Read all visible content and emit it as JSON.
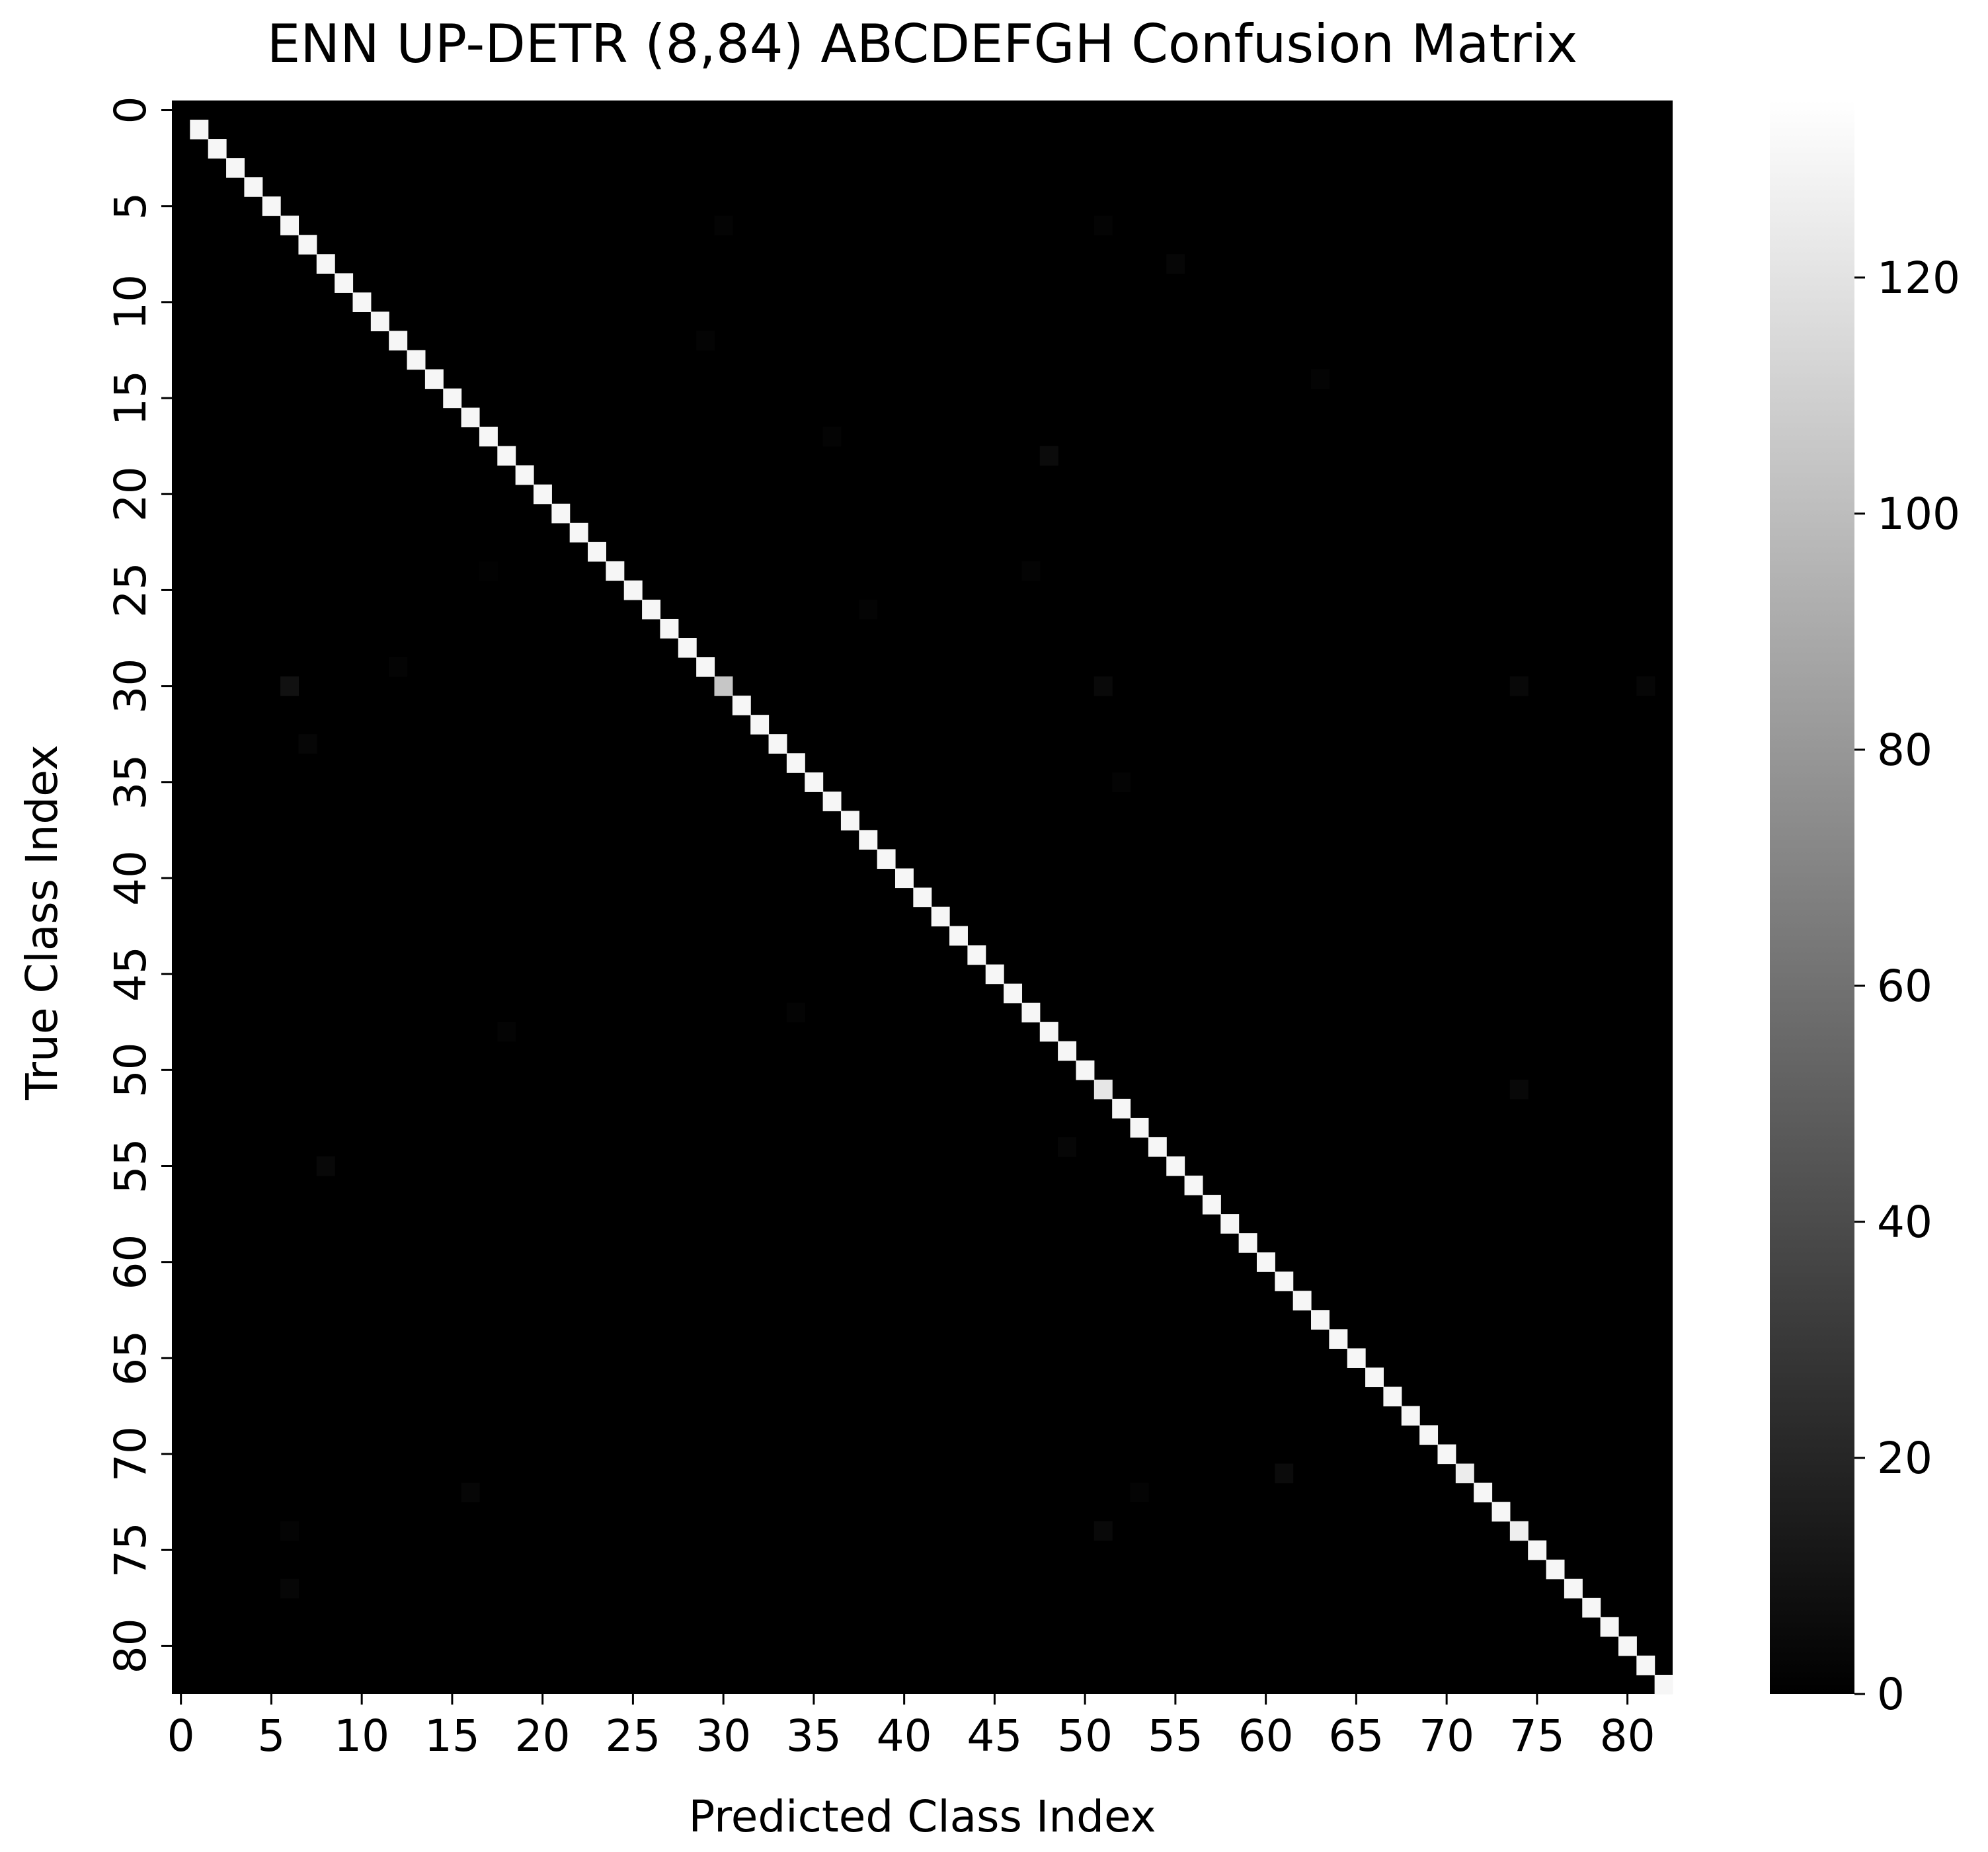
{
  "chart_data": {
    "type": "heatmap",
    "title": "ENN UP-DETR (8,84) ABCDEFGH Confusion Matrix",
    "xlabel": "Predicted Class Index",
    "ylabel": "True Class Index",
    "n_classes": 83,
    "x_ticks": [
      0,
      5,
      10,
      15,
      20,
      25,
      30,
      35,
      40,
      45,
      50,
      55,
      60,
      65,
      70,
      75,
      80
    ],
    "y_ticks": [
      0,
      5,
      10,
      15,
      20,
      25,
      30,
      35,
      40,
      45,
      50,
      55,
      60,
      65,
      70,
      75,
      80
    ],
    "colorbar": {
      "min": 0,
      "max": 135,
      "ticks": [
        0,
        20,
        40,
        60,
        80,
        100,
        120
      ],
      "colormap": "gray",
      "low_color": "#000000",
      "high_color": "#ffffff"
    },
    "diagonal_default": 130,
    "diagonal_overrides": [
      {
        "index": 0,
        "value": 0
      },
      {
        "index": 30,
        "value": 105
      },
      {
        "index": 51,
        "value": 122
      },
      {
        "index": 71,
        "value": 125
      },
      {
        "index": 74,
        "value": 126
      }
    ],
    "off_diagonal": [
      {
        "true": 6,
        "pred": 30,
        "value": 2
      },
      {
        "true": 6,
        "pred": 51,
        "value": 2
      },
      {
        "true": 8,
        "pred": 55,
        "value": 3
      },
      {
        "true": 12,
        "pred": 29,
        "value": 2
      },
      {
        "true": 14,
        "pred": 63,
        "value": 2
      },
      {
        "true": 17,
        "pred": 36,
        "value": 2
      },
      {
        "true": 18,
        "pred": 48,
        "value": 6
      },
      {
        "true": 24,
        "pred": 17,
        "value": 1
      },
      {
        "true": 24,
        "pred": 47,
        "value": 2
      },
      {
        "true": 26,
        "pred": 38,
        "value": 2
      },
      {
        "true": 29,
        "pred": 12,
        "value": 2
      },
      {
        "true": 30,
        "pred": 6,
        "value": 9
      },
      {
        "true": 30,
        "pred": 51,
        "value": 5
      },
      {
        "true": 30,
        "pred": 74,
        "value": 4
      },
      {
        "true": 30,
        "pred": 81,
        "value": 3
      },
      {
        "true": 33,
        "pred": 7,
        "value": 3
      },
      {
        "true": 35,
        "pred": 52,
        "value": 2
      },
      {
        "true": 47,
        "pred": 34,
        "value": 2
      },
      {
        "true": 48,
        "pred": 18,
        "value": 2
      },
      {
        "true": 51,
        "pred": 74,
        "value": 4
      },
      {
        "true": 54,
        "pred": 49,
        "value": 3
      },
      {
        "true": 55,
        "pred": 8,
        "value": 4
      },
      {
        "true": 71,
        "pred": 61,
        "value": 6
      },
      {
        "true": 72,
        "pred": 16,
        "value": 3
      },
      {
        "true": 72,
        "pred": 53,
        "value": 2
      },
      {
        "true": 74,
        "pred": 6,
        "value": 2
      },
      {
        "true": 74,
        "pred": 51,
        "value": 5
      },
      {
        "true": 77,
        "pred": 6,
        "value": 3
      }
    ]
  }
}
